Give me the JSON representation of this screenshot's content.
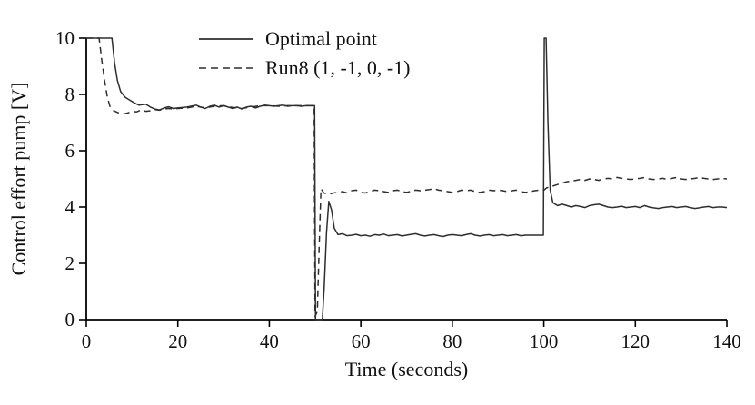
{
  "chart_data": {
    "type": "line",
    "xlabel": "Time (seconds)",
    "ylabel": "Control effort pump [V]",
    "xlim": [
      0,
      140
    ],
    "ylim": [
      0,
      10
    ],
    "xticks": [
      0,
      20,
      40,
      60,
      80,
      100,
      120,
      140
    ],
    "yticks": [
      0,
      2,
      4,
      6,
      8,
      10
    ],
    "grid": false,
    "legend": {
      "position": "top-center"
    },
    "line_color": "#2e2e2e",
    "series": [
      {
        "name": "Optimal point",
        "style": "solid",
        "color": "#2e2e2e",
        "points": [
          [
            0,
            10
          ],
          [
            5.6,
            10
          ],
          [
            6.2,
            9.1
          ],
          [
            6.8,
            8.5
          ],
          [
            7.5,
            8.1
          ],
          [
            8.5,
            7.9
          ],
          [
            9.5,
            7.8
          ],
          [
            10.5,
            7.7
          ],
          [
            11.5,
            7.62
          ],
          [
            13,
            7.65
          ],
          [
            14,
            7.55
          ],
          [
            15,
            7.48
          ],
          [
            16,
            7.45
          ],
          [
            17,
            7.52
          ],
          [
            18,
            7.56
          ],
          [
            19,
            7.5
          ],
          [
            20,
            7.52
          ],
          [
            22,
            7.55
          ],
          [
            24,
            7.62
          ],
          [
            25,
            7.55
          ],
          [
            26,
            7.5
          ],
          [
            27,
            7.58
          ],
          [
            28,
            7.62
          ],
          [
            29,
            7.55
          ],
          [
            30,
            7.6
          ],
          [
            31,
            7.55
          ],
          [
            32,
            7.5
          ],
          [
            33,
            7.55
          ],
          [
            34,
            7.48
          ],
          [
            35,
            7.55
          ],
          [
            36,
            7.58
          ],
          [
            37,
            7.52
          ],
          [
            38,
            7.58
          ],
          [
            39,
            7.62
          ],
          [
            40,
            7.6
          ],
          [
            41,
            7.58
          ],
          [
            42,
            7.6
          ],
          [
            43,
            7.62
          ],
          [
            44,
            7.58
          ],
          [
            45,
            7.6
          ],
          [
            46,
            7.6
          ],
          [
            47,
            7.58
          ],
          [
            48,
            7.6
          ],
          [
            49,
            7.6
          ],
          [
            49.9,
            7.6
          ],
          [
            50.1,
            0
          ],
          [
            51.6,
            0
          ],
          [
            52,
            1.2
          ],
          [
            52.5,
            3.1
          ],
          [
            53,
            4.2
          ],
          [
            53.6,
            3.9
          ],
          [
            54.2,
            3.25
          ],
          [
            55,
            3.02
          ],
          [
            56,
            3.05
          ],
          [
            57,
            2.98
          ],
          [
            58,
            3.0
          ],
          [
            59,
            3.03
          ],
          [
            60,
            2.98
          ],
          [
            61,
            3.0
          ],
          [
            62,
            2.96
          ],
          [
            63,
            3.02
          ],
          [
            64,
            3.0
          ],
          [
            65,
            3.04
          ],
          [
            66,
            2.98
          ],
          [
            67,
            3.0
          ],
          [
            68,
            3.02
          ],
          [
            69,
            2.97
          ],
          [
            70,
            3.0
          ],
          [
            71,
            3.03
          ],
          [
            72,
            3.05
          ],
          [
            73,
            3.0
          ],
          [
            74,
            2.97
          ],
          [
            75,
            3.0
          ],
          [
            76,
            3.02
          ],
          [
            77,
            2.98
          ],
          [
            78,
            2.95
          ],
          [
            79,
            3.0
          ],
          [
            80,
            3.02
          ],
          [
            81,
            3.0
          ],
          [
            82,
            2.98
          ],
          [
            83,
            3.02
          ],
          [
            84,
            3.05
          ],
          [
            85,
            3.0
          ],
          [
            86,
            2.97
          ],
          [
            87,
            3.0
          ],
          [
            88,
            3.02
          ],
          [
            89,
            2.98
          ],
          [
            90,
            3.0
          ],
          [
            91,
            3.02
          ],
          [
            92,
            2.98
          ],
          [
            93,
            3.0
          ],
          [
            94,
            3.02
          ],
          [
            95,
            2.98
          ],
          [
            96,
            3.0
          ],
          [
            97,
            3.0
          ],
          [
            98,
            3.0
          ],
          [
            99,
            3.0
          ],
          [
            99.9,
            3.0
          ],
          [
            100.1,
            10
          ],
          [
            100.5,
            10
          ],
          [
            100.9,
            7.0
          ],
          [
            101.4,
            4.6
          ],
          [
            102,
            4.15
          ],
          [
            103,
            4.05
          ],
          [
            104,
            4.1
          ],
          [
            105,
            4.05
          ],
          [
            106,
            4.0
          ],
          [
            107,
            4.05
          ],
          [
            108,
            4.02
          ],
          [
            109,
            3.98
          ],
          [
            110,
            4.05
          ],
          [
            111,
            4.08
          ],
          [
            112,
            4.1
          ],
          [
            113,
            4.05
          ],
          [
            114,
            4.0
          ],
          [
            115,
            3.98
          ],
          [
            116,
            4.0
          ],
          [
            117,
            4.03
          ],
          [
            118,
            3.98
          ],
          [
            119,
            4.0
          ],
          [
            120,
            4.02
          ],
          [
            121,
            3.98
          ],
          [
            122,
            4.05
          ],
          [
            123,
            4.0
          ],
          [
            124,
            3.97
          ],
          [
            125,
            3.95
          ],
          [
            126,
            3.98
          ],
          [
            127,
            4.0
          ],
          [
            128,
            4.02
          ],
          [
            129,
            3.98
          ],
          [
            130,
            4.0
          ],
          [
            131,
            4.02
          ],
          [
            132,
            3.98
          ],
          [
            133,
            3.95
          ],
          [
            134,
            3.97
          ],
          [
            135,
            4.0
          ],
          [
            136,
            4.02
          ],
          [
            137,
            3.98
          ],
          [
            138,
            4.0
          ],
          [
            139,
            4.0
          ],
          [
            140,
            3.98
          ]
        ]
      },
      {
        "name": "Run8 (1, -1, 0, -1)",
        "style": "dashed",
        "color": "#2e2e2e",
        "points": [
          [
            0,
            10
          ],
          [
            2.8,
            10
          ],
          [
            3.4,
            9.2
          ],
          [
            4,
            8.5
          ],
          [
            4.6,
            7.9
          ],
          [
            5.2,
            7.55
          ],
          [
            6,
            7.42
          ],
          [
            7,
            7.35
          ],
          [
            8,
            7.3
          ],
          [
            9,
            7.34
          ],
          [
            10,
            7.4
          ],
          [
            11,
            7.38
          ],
          [
            12,
            7.45
          ],
          [
            13,
            7.4
          ],
          [
            14,
            7.42
          ],
          [
            15,
            7.46
          ],
          [
            16,
            7.44
          ],
          [
            17,
            7.48
          ],
          [
            18,
            7.5
          ],
          [
            19,
            7.48
          ],
          [
            20,
            7.5
          ],
          [
            22,
            7.52
          ],
          [
            24,
            7.58
          ],
          [
            26,
            7.52
          ],
          [
            28,
            7.58
          ],
          [
            30,
            7.6
          ],
          [
            32,
            7.54
          ],
          [
            34,
            7.5
          ],
          [
            36,
            7.55
          ],
          [
            38,
            7.6
          ],
          [
            40,
            7.6
          ],
          [
            42,
            7.58
          ],
          [
            44,
            7.6
          ],
          [
            46,
            7.6
          ],
          [
            48,
            7.6
          ],
          [
            49.8,
            7.6
          ],
          [
            50,
            0.1
          ],
          [
            50.5,
            0.3
          ],
          [
            50.9,
            2.6
          ],
          [
            51.3,
            4.65
          ],
          [
            51.9,
            4.5
          ],
          [
            53,
            4.45
          ],
          [
            54,
            4.5
          ],
          [
            55,
            4.52
          ],
          [
            56,
            4.55
          ],
          [
            57,
            4.5
          ],
          [
            58,
            4.58
          ],
          [
            59,
            4.6
          ],
          [
            60,
            4.52
          ],
          [
            61,
            4.5
          ],
          [
            62,
            4.55
          ],
          [
            63,
            4.6
          ],
          [
            64,
            4.58
          ],
          [
            65,
            4.55
          ],
          [
            66,
            4.52
          ],
          [
            67,
            4.58
          ],
          [
            68,
            4.6
          ],
          [
            69,
            4.55
          ],
          [
            70,
            4.52
          ],
          [
            71,
            4.56
          ],
          [
            72,
            4.6
          ],
          [
            73,
            4.58
          ],
          [
            74,
            4.6
          ],
          [
            75,
            4.62
          ],
          [
            76,
            4.65
          ],
          [
            77,
            4.6
          ],
          [
            78,
            4.58
          ],
          [
            79,
            4.55
          ],
          [
            80,
            4.52
          ],
          [
            81,
            4.55
          ],
          [
            82,
            4.6
          ],
          [
            83,
            4.58
          ],
          [
            84,
            4.6
          ],
          [
            85,
            4.55
          ],
          [
            86,
            4.52
          ],
          [
            87,
            4.55
          ],
          [
            88,
            4.6
          ],
          [
            89,
            4.58
          ],
          [
            90,
            4.6
          ],
          [
            91,
            4.58
          ],
          [
            92,
            4.55
          ],
          [
            93,
            4.58
          ],
          [
            94,
            4.6
          ],
          [
            95,
            4.55
          ],
          [
            96,
            4.52
          ],
          [
            97,
            4.55
          ],
          [
            98,
            4.58
          ],
          [
            99,
            4.6
          ],
          [
            100,
            4.6
          ],
          [
            100.6,
            4.68
          ],
          [
            101.5,
            4.72
          ],
          [
            103,
            4.8
          ],
          [
            104,
            4.85
          ],
          [
            105,
            4.9
          ],
          [
            106,
            4.92
          ],
          [
            107,
            4.95
          ],
          [
            108,
            4.98
          ],
          [
            109,
            4.95
          ],
          [
            110,
            5.0
          ],
          [
            111,
            4.98
          ],
          [
            112,
            4.95
          ],
          [
            113,
            5.0
          ],
          [
            114,
            5.02
          ],
          [
            115,
            5.0
          ],
          [
            116,
            5.05
          ],
          [
            117,
            5.02
          ],
          [
            118,
            5.0
          ],
          [
            119,
            4.98
          ],
          [
            120,
            5.0
          ],
          [
            121,
            5.02
          ],
          [
            122,
            5.05
          ],
          [
            123,
            5.0
          ],
          [
            124,
            4.98
          ],
          [
            125,
            5.0
          ],
          [
            126,
            5.02
          ],
          [
            127,
            4.98
          ],
          [
            128,
            5.02
          ],
          [
            129,
            5.05
          ],
          [
            130,
            5.0
          ],
          [
            131,
            4.98
          ],
          [
            132,
            5.0
          ],
          [
            133,
            5.02
          ],
          [
            134,
            5.05
          ],
          [
            135,
            5.02
          ],
          [
            136,
            5.0
          ],
          [
            137,
            4.98
          ],
          [
            138,
            5.0
          ],
          [
            139,
            5.02
          ],
          [
            140,
            5.0
          ]
        ]
      }
    ]
  }
}
